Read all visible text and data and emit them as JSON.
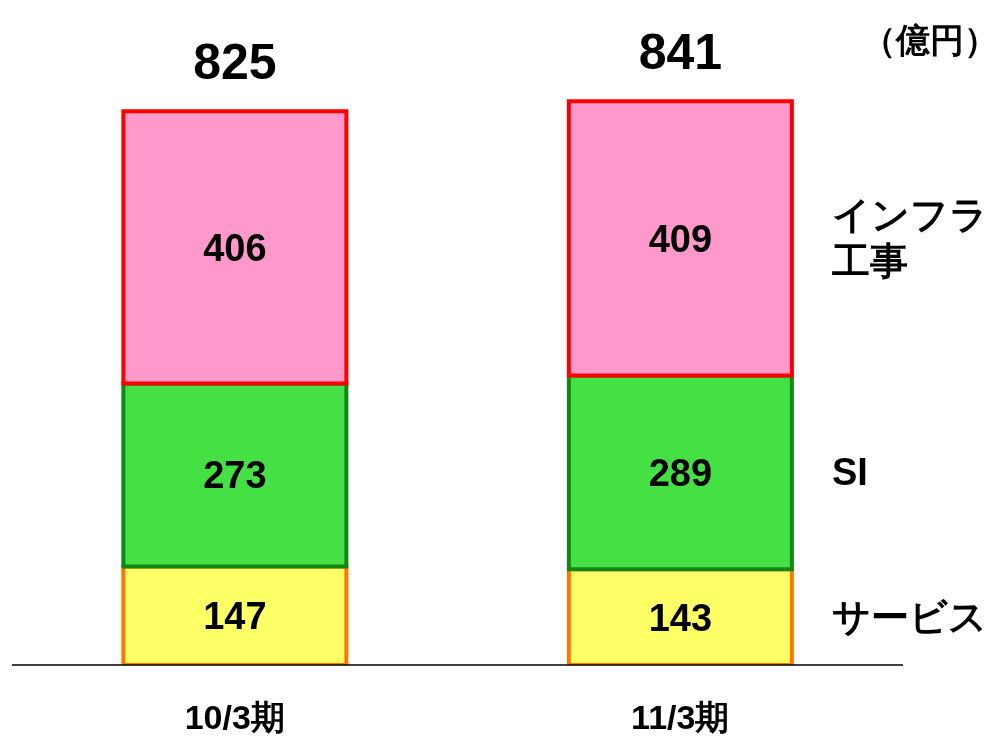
{
  "chart_data": {
    "type": "bar",
    "stacked": true,
    "categories": [
      "10/3期",
      "11/3期"
    ],
    "series": [
      {
        "name": "サービス",
        "color": "#ffff66",
        "values": [
          147,
          143
        ]
      },
      {
        "name": "SI",
        "color": "#44e044",
        "values": [
          273,
          289
        ]
      },
      {
        "name": "インフラ工事",
        "color": "#ff99cc",
        "values": [
          406,
          409
        ]
      }
    ],
    "data_labels": true,
    "totals": [
      "825",
      "841"
    ],
    "annotations": [
      "（億円）"
    ],
    "legend": false,
    "grid": false
  }
}
